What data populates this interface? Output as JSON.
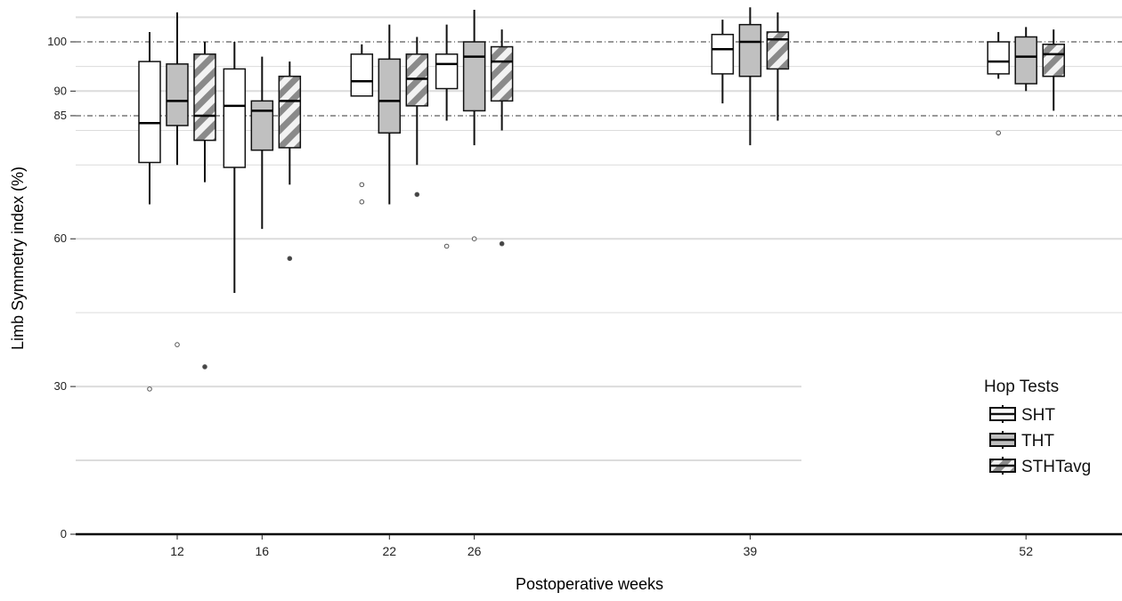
{
  "chart_data": {
    "type": "box",
    "xlabel": "Postoperative weeks",
    "ylabel": "Limb Symmetry index (%)",
    "y_ticks": [
      0,
      30,
      60,
      85,
      90,
      100
    ],
    "x_ticks": [
      12,
      16,
      22,
      26,
      39,
      52
    ],
    "reference_lines": [
      85,
      100
    ],
    "legend": {
      "title": "Hop Tests",
      "position": "right",
      "entries": [
        "SHT",
        "THT",
        "STHTavg"
      ]
    },
    "series": [
      {
        "name": "SHT",
        "fill": "#ffffff",
        "pattern": "none"
      },
      {
        "name": "THT",
        "fill": "#c0c0c0",
        "pattern": "none"
      },
      {
        "name": "STHTavg",
        "fill": "#ffffff",
        "pattern": "hatch"
      }
    ],
    "groups": [
      {
        "week": 12,
        "boxes": [
          {
            "series": "SHT",
            "whisker_low": 67,
            "q1": 75.5,
            "median": 83.5,
            "q3": 96,
            "whisker_high": 102,
            "outliers": [
              29.5
            ]
          },
          {
            "series": "THT",
            "whisker_low": 75,
            "q1": 83,
            "median": 88,
            "q3": 95.5,
            "whisker_high": 106,
            "outliers": [
              38.5
            ]
          },
          {
            "series": "STHTavg",
            "whisker_low": 71.5,
            "q1": 80,
            "median": 85,
            "q3": 97.5,
            "whisker_high": 100,
            "outliers": [
              34
            ]
          }
        ]
      },
      {
        "week": 16,
        "boxes": [
          {
            "series": "SHT",
            "whisker_low": 49,
            "q1": 74.5,
            "median": 87,
            "q3": 94.5,
            "whisker_high": 100,
            "outliers": []
          },
          {
            "series": "THT",
            "whisker_low": 62,
            "q1": 78,
            "median": 86,
            "q3": 88,
            "whisker_high": 97,
            "outliers": []
          },
          {
            "series": "STHTavg",
            "whisker_low": 71,
            "q1": 78.5,
            "median": 88,
            "q3": 93,
            "whisker_high": 96,
            "outliers": [
              56
            ]
          }
        ]
      },
      {
        "week": 22,
        "boxes": [
          {
            "series": "SHT",
            "whisker_low": 89,
            "q1": 89,
            "median": 92,
            "q3": 97.5,
            "whisker_high": 99.5,
            "outliers": [
              71,
              67.5
            ]
          },
          {
            "series": "THT",
            "whisker_low": 67,
            "q1": 81.5,
            "median": 88,
            "q3": 96.5,
            "whisker_high": 103.5,
            "outliers": []
          },
          {
            "series": "STHTavg",
            "whisker_low": 75,
            "q1": 87,
            "median": 92.5,
            "q3": 97.5,
            "whisker_high": 101,
            "outliers": [
              69
            ]
          }
        ]
      },
      {
        "week": 26,
        "boxes": [
          {
            "series": "SHT",
            "whisker_low": 84,
            "q1": 90.5,
            "median": 95.5,
            "q3": 97.5,
            "whisker_high": 103.5,
            "outliers": [
              58.5
            ]
          },
          {
            "series": "THT",
            "whisker_low": 79,
            "q1": 86,
            "median": 97,
            "q3": 100,
            "whisker_high": 106.5,
            "outliers": [
              60
            ]
          },
          {
            "series": "STHTavg",
            "whisker_low": 82,
            "q1": 88,
            "median": 96,
            "q3": 99,
            "whisker_high": 102.5,
            "outliers": [
              59
            ]
          }
        ]
      },
      {
        "week": 39,
        "boxes": [
          {
            "series": "SHT",
            "whisker_low": 87.5,
            "q1": 93.5,
            "median": 98.5,
            "q3": 101.5,
            "whisker_high": 104.5,
            "outliers": []
          },
          {
            "series": "THT",
            "whisker_low": 79,
            "q1": 93,
            "median": 100,
            "q3": 103.5,
            "whisker_high": 107,
            "outliers": []
          },
          {
            "series": "STHTavg",
            "whisker_low": 84,
            "q1": 94.5,
            "median": 100.5,
            "q3": 102,
            "whisker_high": 106,
            "outliers": []
          }
        ]
      },
      {
        "week": 52,
        "boxes": [
          {
            "series": "SHT",
            "whisker_low": 92.5,
            "q1": 93.5,
            "median": 96,
            "q3": 100,
            "whisker_high": 102,
            "outliers": [
              81.5
            ]
          },
          {
            "series": "THT",
            "whisker_low": 90,
            "q1": 91.5,
            "median": 97,
            "q3": 101,
            "whisker_high": 103,
            "outliers": []
          },
          {
            "series": "STHTavg",
            "whisker_low": 86,
            "q1": 93,
            "median": 97.5,
            "q3": 99.5,
            "whisker_high": 102.5,
            "outliers": []
          }
        ]
      }
    ]
  }
}
